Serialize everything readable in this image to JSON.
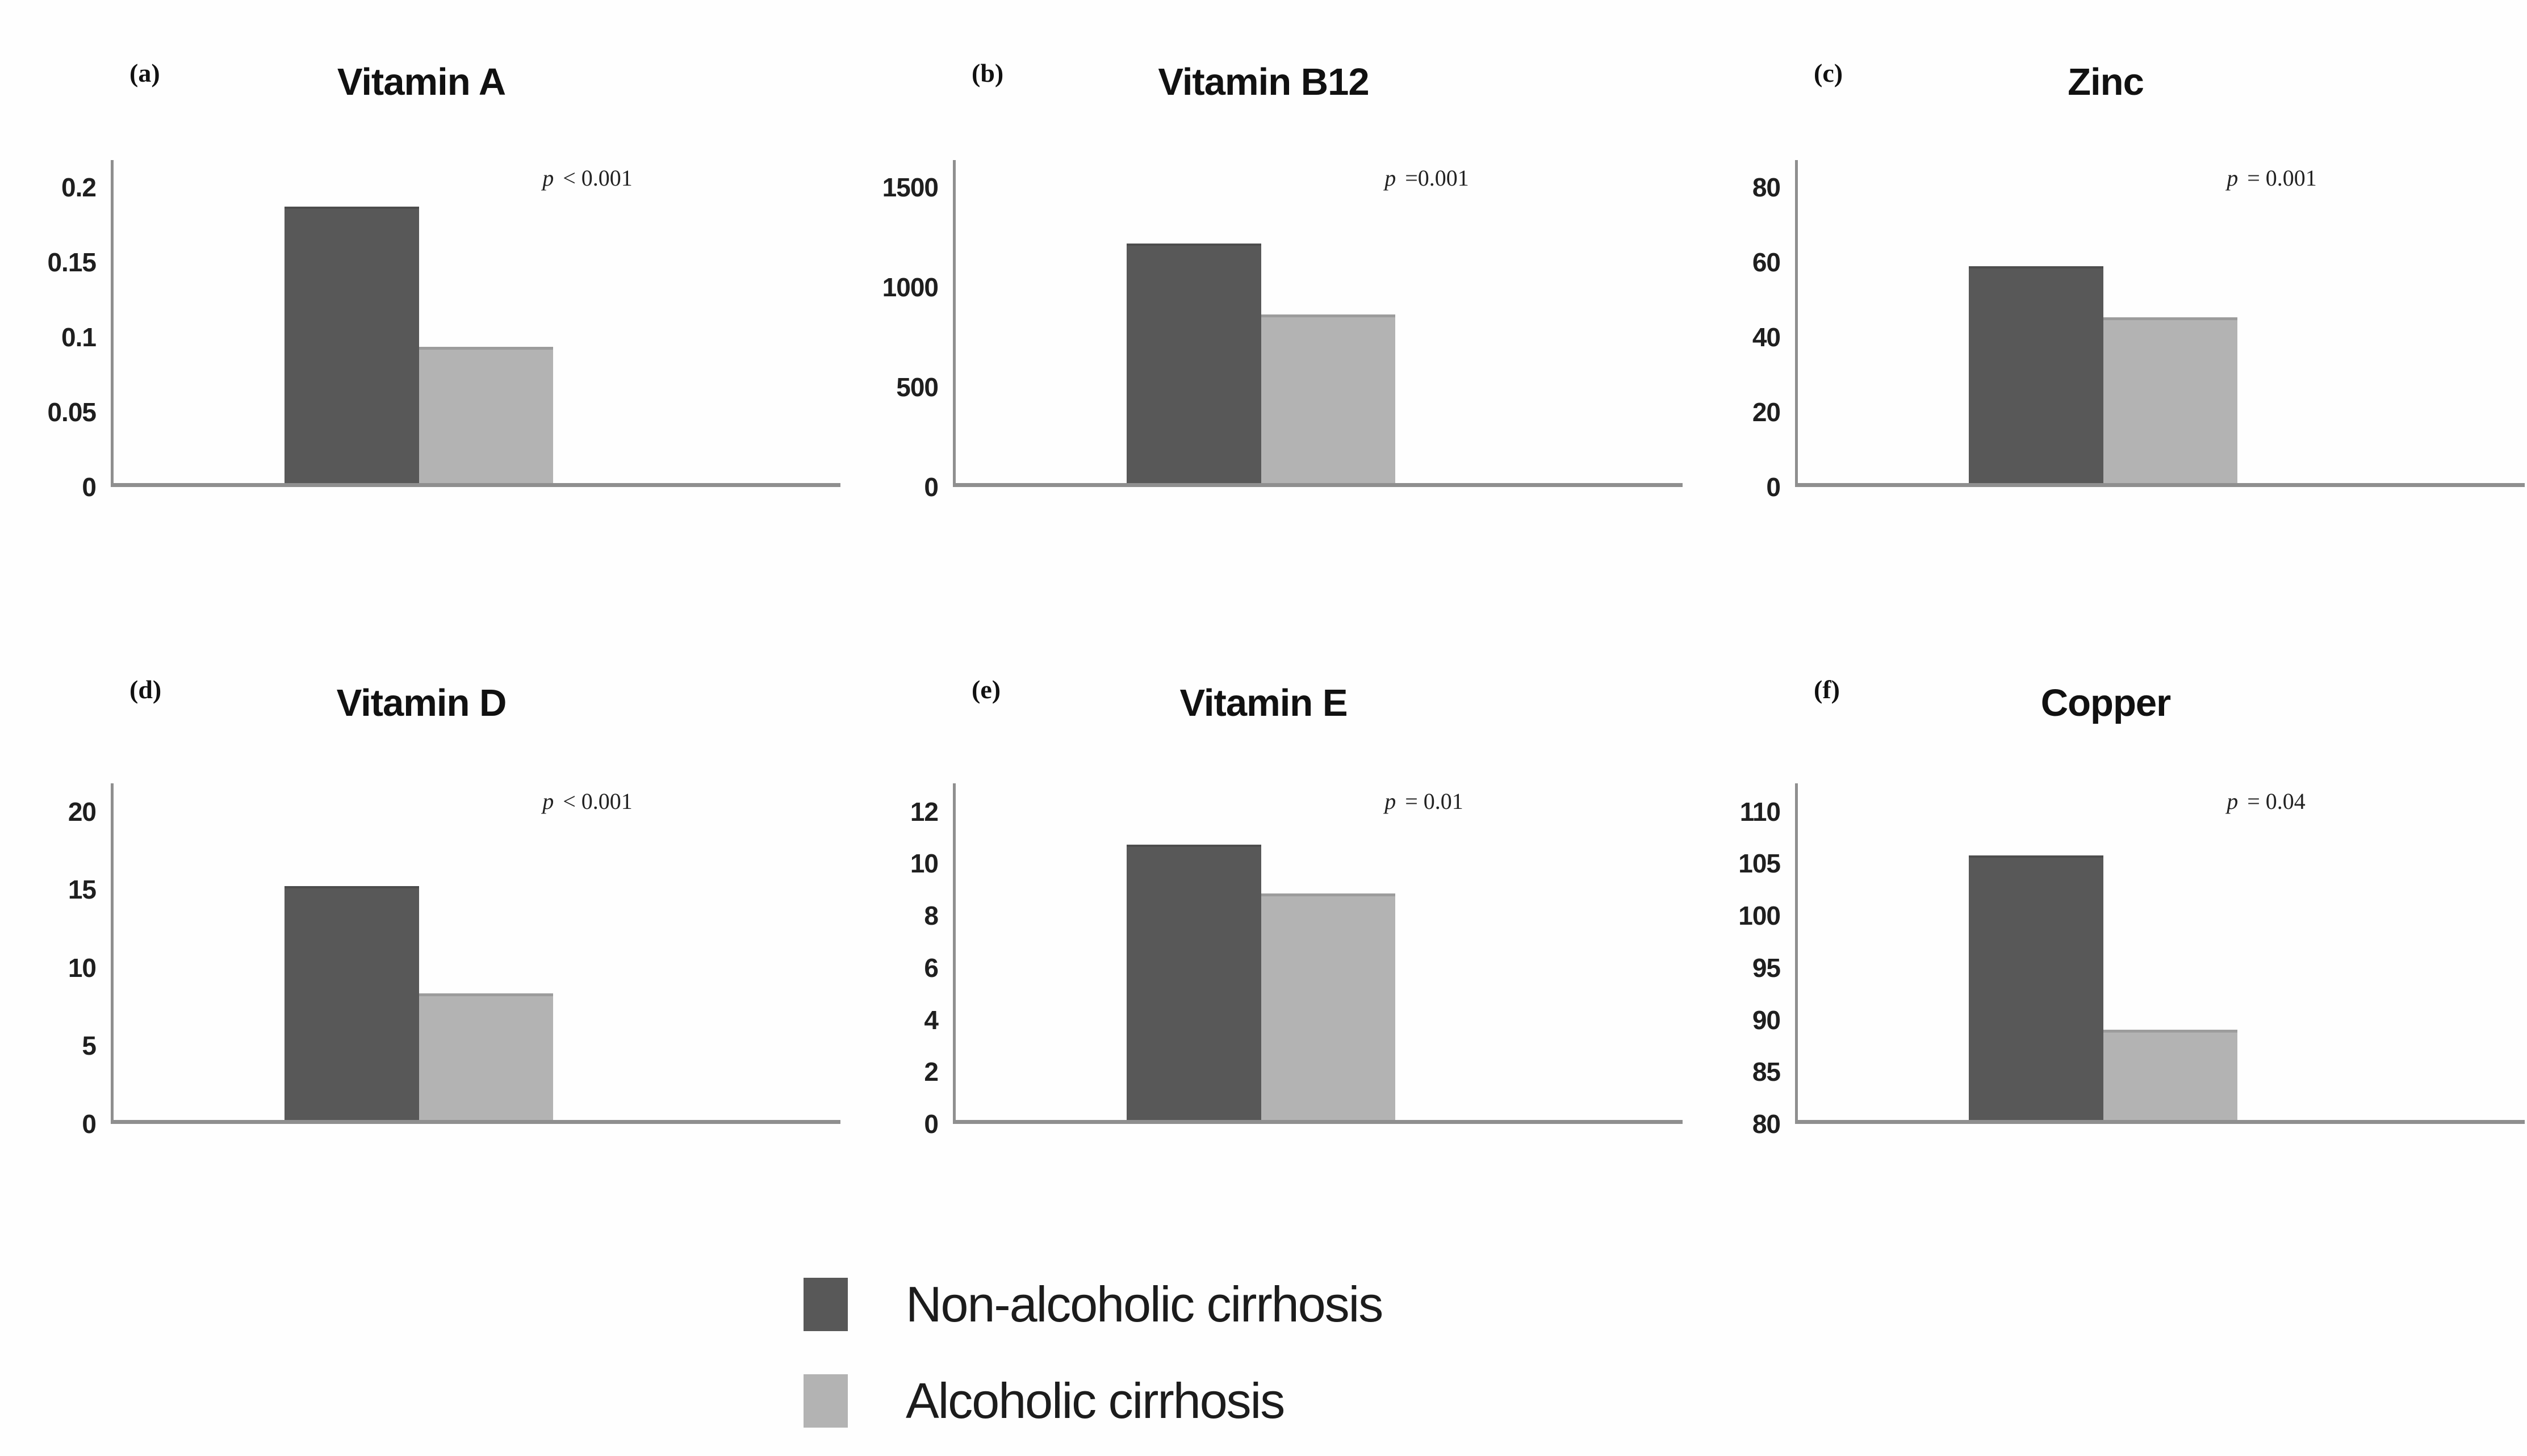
{
  "figure": {
    "colors": {
      "dark_series": "#585858",
      "light_series": "#b3b3b3",
      "axis": "#8f8f8f"
    },
    "axis_headroom": 1.09,
    "legend": {
      "position": "bottom-center",
      "items": [
        {
          "swatch": "dark-gray-square",
          "color": "#585858",
          "label": "Non-alcoholic cirrhosis"
        },
        {
          "swatch": "light-gray-square",
          "color": "#b3b3b3",
          "label": "Alcoholic cirrhosis"
        }
      ]
    }
  },
  "chart_data": [
    {
      "type": "bar",
      "panel_label": "(a)",
      "title": "Vitamin A",
      "categories": [
        "Non-alcoholic cirrhosis",
        "Alcoholic cirrhosis"
      ],
      "values": [
        0.185,
        0.09
      ],
      "p_label": "p < 0.001",
      "yticks": [
        0.2,
        0.15,
        0.1,
        0.05,
        0
      ],
      "ylim": [
        0,
        0.2
      ],
      "grid": false,
      "legend_position": "none"
    },
    {
      "type": "bar",
      "panel_label": "(b)",
      "title": "Vitamin B12",
      "categories": [
        "Non-alcoholic cirrhosis",
        "Alcoholic cirrhosis"
      ],
      "values": [
        1200,
        840
      ],
      "p_label": "p =0.001",
      "yticks": [
        1500,
        1000,
        500,
        0
      ],
      "ylim": [
        0,
        1500
      ],
      "grid": false,
      "legend_position": "none"
    },
    {
      "type": "bar",
      "panel_label": "(c)",
      "title": "Zinc",
      "categories": [
        "Non-alcoholic cirrhosis",
        "Alcoholic cirrhosis"
      ],
      "values": [
        58,
        44
      ],
      "p_label": "p = 0.001",
      "yticks": [
        80,
        60,
        40,
        20,
        0
      ],
      "ylim": [
        0,
        80
      ],
      "grid": false,
      "legend_position": "none"
    },
    {
      "type": "bar",
      "panel_label": "(d)",
      "title": "Vitamin D",
      "categories": [
        "Non-alcoholic cirrhosis",
        "Alcoholic cirrhosis"
      ],
      "values": [
        15,
        8
      ],
      "p_label": "p < 0.001",
      "yticks": [
        20,
        15,
        10,
        5,
        0
      ],
      "ylim": [
        0,
        20
      ],
      "grid": false,
      "legend_position": "none"
    },
    {
      "type": "bar",
      "panel_label": "(e)",
      "title": "Vitamin E",
      "categories": [
        "Non-alcoholic cirrhosis",
        "Alcoholic cirrhosis"
      ],
      "values": [
        10.6,
        8.7
      ],
      "p_label": "p = 0.01",
      "yticks": [
        12,
        10,
        8,
        6,
        4,
        2,
        0
      ],
      "ylim": [
        0,
        12
      ],
      "grid": false,
      "legend_position": "none"
    },
    {
      "type": "bar",
      "panel_label": "(f)",
      "title": "Copper",
      "categories": [
        "Non-alcoholic cirrhosis",
        "Alcoholic cirrhosis"
      ],
      "values": [
        105.5,
        88.5
      ],
      "p_label": "p = 0.04",
      "yticks": [
        110,
        105,
        100,
        95,
        90,
        85,
        80
      ],
      "ylim": [
        80,
        110
      ],
      "grid": false,
      "legend_position": "none"
    }
  ]
}
